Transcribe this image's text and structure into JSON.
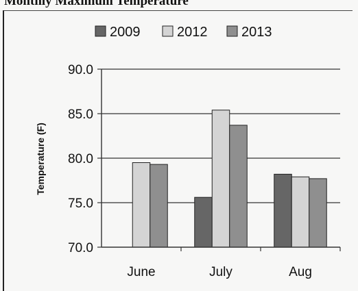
{
  "page_title": "Monthly Maximum Temperature",
  "chart_data": {
    "type": "bar",
    "title": "",
    "ylabel": "Temperature (F)",
    "xlabel": "",
    "categories": [
      "June",
      "July",
      "Aug"
    ],
    "series": [
      {
        "name": "2009",
        "values": [
          null,
          75.6,
          78.2
        ],
        "color": "#666666"
      },
      {
        "name": "2012",
        "values": [
          79.5,
          85.4,
          77.9
        ],
        "color": "#d4d4d4"
      },
      {
        "name": "2013",
        "values": [
          79.3,
          83.7,
          77.7
        ],
        "color": "#8f8f8f"
      }
    ],
    "ylim": [
      70,
      90
    ],
    "yticks": [
      "70.0",
      "75.0",
      "80.0",
      "85.0",
      "90.0"
    ],
    "grid": true,
    "legend_position": "top"
  }
}
